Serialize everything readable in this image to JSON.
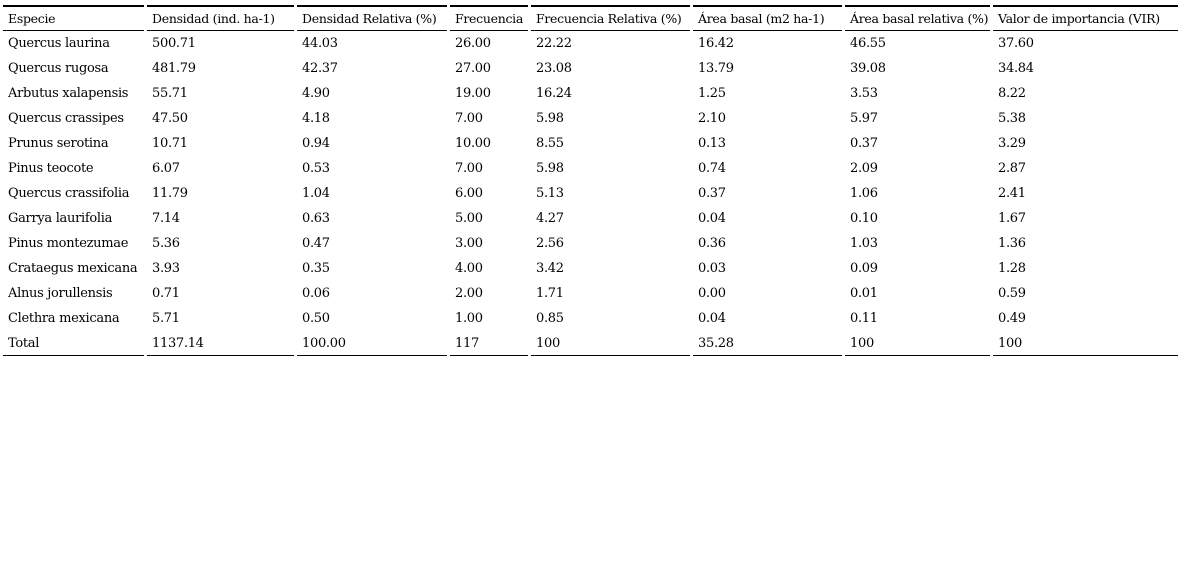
{
  "colors": {
    "background": "#ffffff",
    "text": "#000000",
    "rule": "#000000"
  },
  "table": {
    "columns": [
      "Especie",
      "Densidad (ind. ha-1)",
      "Densidad Relativa (%)",
      "Frecuencia",
      "Frecuencia Relativa (%)",
      "Área basal (m2 ha-1)",
      "Área basal relativa (%)",
      "Valor de importancia (VIR)"
    ],
    "rows": [
      [
        "Quercus laurina",
        "500.71",
        "44.03",
        "26.00",
        "22.22",
        "16.42",
        "46.55",
        "37.60"
      ],
      [
        "Quercus rugosa",
        "481.79",
        "42.37",
        "27.00",
        "23.08",
        "13.79",
        "39.08",
        "34.84"
      ],
      [
        "Arbutus xalapensis",
        "55.71",
        "4.90",
        "19.00",
        "16.24",
        "1.25",
        "3.53",
        "8.22"
      ],
      [
        "Quercus crassipes",
        "47.50",
        "4.18",
        "7.00",
        "5.98",
        "2.10",
        "5.97",
        "5.38"
      ],
      [
        "Prunus serotina",
        "10.71",
        "0.94",
        "10.00",
        "8.55",
        "0.13",
        "0.37",
        "3.29"
      ],
      [
        "Pinus teocote",
        "6.07",
        "0.53",
        "7.00",
        "5.98",
        "0.74",
        "2.09",
        "2.87"
      ],
      [
        "Quercus crassifolia",
        "11.79",
        "1.04",
        "6.00",
        "5.13",
        "0.37",
        "1.06",
        "2.41"
      ],
      [
        "Garrya laurifolia",
        "7.14",
        "0.63",
        "5.00",
        "4.27",
        "0.04",
        "0.10",
        "1.67"
      ],
      [
        "Pinus montezumae",
        "5.36",
        "0.47",
        "3.00",
        "2.56",
        "0.36",
        "1.03",
        "1.36"
      ],
      [
        "Crataegus mexicana",
        "3.93",
        "0.35",
        "4.00",
        "3.42",
        "0.03",
        "0.09",
        "1.28"
      ],
      [
        "Alnus jorullensis",
        "0.71",
        "0.06",
        "2.00",
        "1.71",
        "0.00",
        "0.01",
        "0.59"
      ],
      [
        "Clethra mexicana",
        "5.71",
        "0.50",
        "1.00",
        "0.85",
        "0.04",
        "0.11",
        "0.49"
      ]
    ],
    "total_row": [
      "Total",
      "1137.14",
      "100.00",
      "117",
      "100",
      "35.28",
      "100",
      "100"
    ]
  }
}
